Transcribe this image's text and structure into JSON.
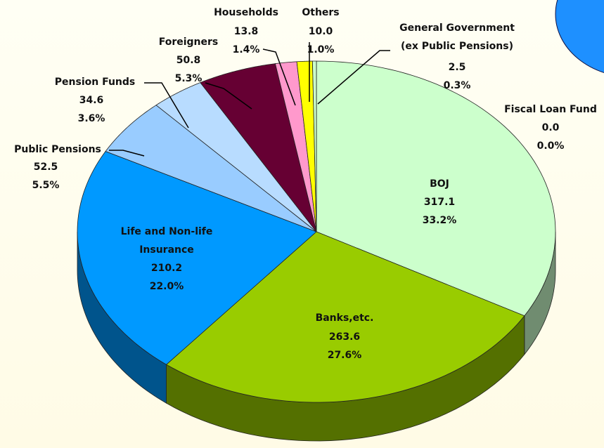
{
  "chart_data": {
    "type": "pie",
    "categories": [
      "Fiscal Loan Fund",
      "BOJ",
      "Banks,etc.",
      "Life and Non-life\nInsurance",
      "Public Pensions",
      "Pension Funds",
      "Foreigners",
      "Households",
      "Others",
      "General Government\n(ex Public Pensions)"
    ],
    "values": [
      0.0,
      317.1,
      263.6,
      210.2,
      52.5,
      34.6,
      50.8,
      13.8,
      10.0,
      2.5
    ],
    "value_labels": [
      "0.0",
      "317.1",
      "263.6",
      "210.2",
      "52.5",
      "34.6",
      "50.8",
      "13.8",
      "10.0",
      "2.5"
    ],
    "percent_labels": [
      "0.0%",
      "33.2%",
      "27.6%",
      "22.0%",
      "5.5%",
      "3.6%",
      "5.3%",
      "1.4%",
      "1.0%",
      "0.3%"
    ],
    "colors": [
      "#ffffff",
      "#ccffcc",
      "#99cc00",
      "#0099ff",
      "#99ccff",
      "#b8dcff",
      "#660033",
      "#ff99cc",
      "#ffff00",
      "#ccffcc"
    ]
  }
}
